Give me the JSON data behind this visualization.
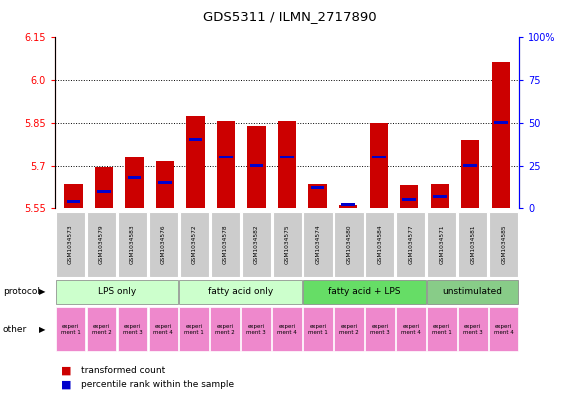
{
  "title": "GDS5311 / ILMN_2717890",
  "samples": [
    "GSM1034573",
    "GSM1034579",
    "GSM1034583",
    "GSM1034576",
    "GSM1034572",
    "GSM1034578",
    "GSM1034582",
    "GSM1034575",
    "GSM1034574",
    "GSM1034580",
    "GSM1034584",
    "GSM1034577",
    "GSM1034571",
    "GSM1034581",
    "GSM1034585"
  ],
  "red_values": [
    5.635,
    5.695,
    5.73,
    5.715,
    5.875,
    5.855,
    5.84,
    5.855,
    5.635,
    5.56,
    5.85,
    5.63,
    5.635,
    5.79,
    6.065
  ],
  "blue_pct": [
    4,
    10,
    18,
    15,
    40,
    30,
    25,
    30,
    12,
    2,
    30,
    5,
    7,
    25,
    50
  ],
  "y_min": 5.55,
  "y_max": 6.15,
  "y_ticks": [
    5.55,
    5.7,
    5.85,
    6.0,
    6.15
  ],
  "y_right_ticks": [
    0,
    25,
    50,
    75,
    100
  ],
  "protocols": [
    {
      "label": "LPS only",
      "color": "#ccffcc",
      "start": 0,
      "end": 4
    },
    {
      "label": "fatty acid only",
      "color": "#ccffcc",
      "start": 4,
      "end": 8
    },
    {
      "label": "fatty acid + LPS",
      "color": "#66dd66",
      "start": 8,
      "end": 12
    },
    {
      "label": "unstimulated",
      "color": "#88cc88",
      "start": 12,
      "end": 15
    }
  ],
  "experiments": [
    "experi\nment 1",
    "experi\nment 2",
    "experi\nment 3",
    "experi\nment 4",
    "experi\nment 1",
    "experi\nment 2",
    "experi\nment 3",
    "experi\nment 4",
    "experi\nment 1",
    "experi\nment 2",
    "experi\nment 3",
    "experi\nment 4",
    "experi\nment 1",
    "experi\nment 3",
    "experi\nment 4"
  ],
  "exp_colors": [
    "#ee88cc",
    "#ee88cc",
    "#ee88cc",
    "#ee88cc",
    "#ee88cc",
    "#ee88cc",
    "#ee88cc",
    "#ee88cc",
    "#ee88cc",
    "#ee88cc",
    "#ee88cc",
    "#ee88cc",
    "#ee88cc",
    "#ee88cc",
    "#ee88cc"
  ],
  "bar_width": 0.6,
  "bar_color": "#cc0000",
  "blue_color": "#0000cc",
  "sample_box_color": "#cccccc"
}
